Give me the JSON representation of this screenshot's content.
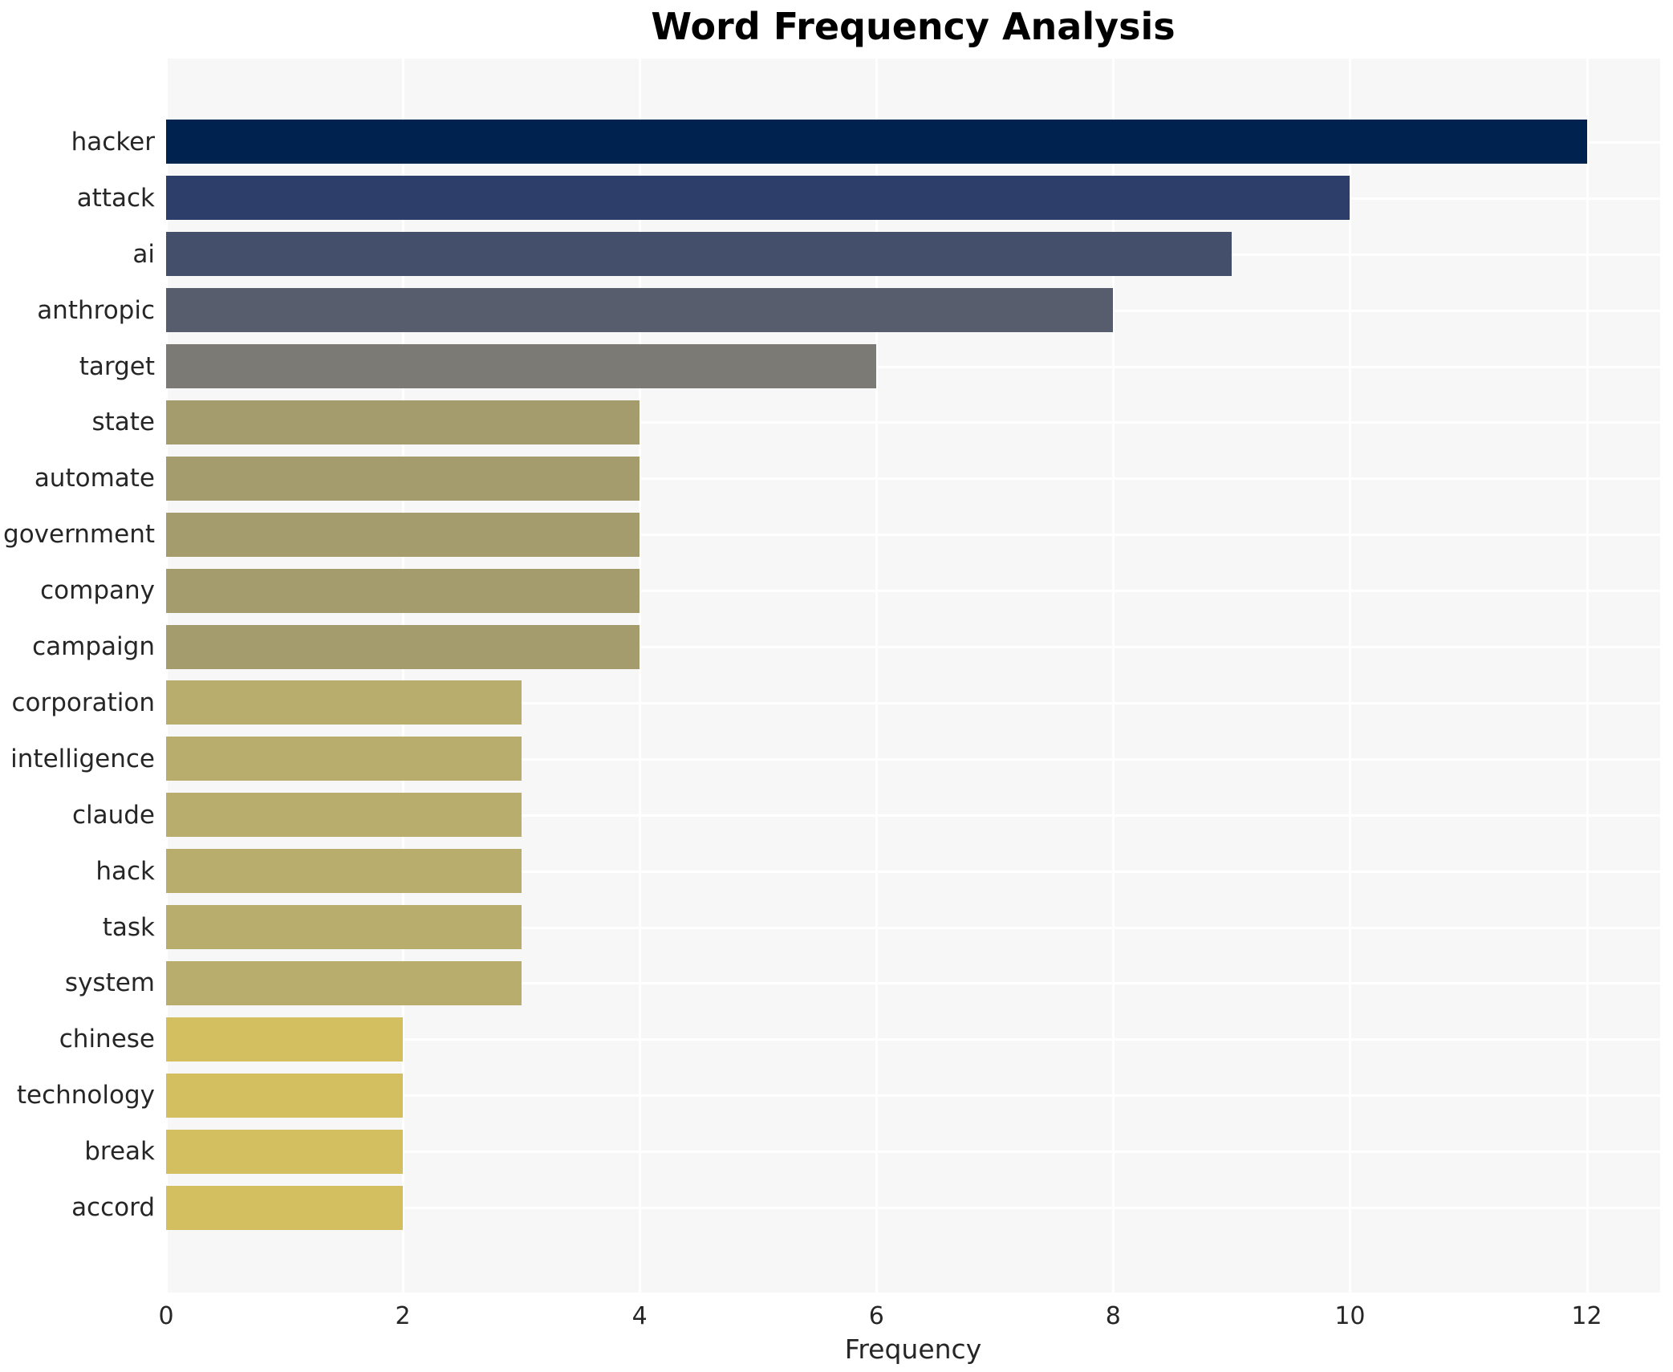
{
  "title": "Word Frequency Analysis",
  "chart_data": {
    "type": "bar",
    "orientation": "horizontal",
    "title": "Word Frequency Analysis",
    "xlabel": "Frequency",
    "ylabel": "",
    "categories": [
      "hacker",
      "attack",
      "ai",
      "anthropic",
      "target",
      "state",
      "automate",
      "government",
      "company",
      "campaign",
      "corporation",
      "intelligence",
      "claude",
      "hack",
      "task",
      "system",
      "chinese",
      "technology",
      "break",
      "accord"
    ],
    "values": [
      12,
      10,
      9,
      8,
      6,
      4,
      4,
      4,
      4,
      4,
      3,
      3,
      3,
      3,
      3,
      3,
      2,
      2,
      2,
      2
    ],
    "bar_colors": [
      "#00224e",
      "#2d3e6a",
      "#434f6b",
      "#575d6d",
      "#7b7a74",
      "#a59c6e",
      "#a59c6e",
      "#a59c6e",
      "#a59c6e",
      "#a59c6e",
      "#b8ad6c",
      "#b8ad6c",
      "#b8ad6c",
      "#b8ad6c",
      "#b8ad6c",
      "#b8ad6c",
      "#d3bf5f",
      "#d3bf5f",
      "#d3bf5f",
      "#d3bf5f"
    ],
    "xticks": [
      "0",
      "2",
      "4",
      "6",
      "8",
      "10",
      "12"
    ],
    "xtick_values": [
      0,
      2,
      4,
      6,
      8,
      10,
      12
    ],
    "xlim": [
      0,
      12.62
    ],
    "grid": "white gridlines on light gray plot background",
    "legend": "none",
    "plot_background": "#f7f7f7",
    "figure_background": "#ffffff",
    "text_color": "#262626"
  }
}
